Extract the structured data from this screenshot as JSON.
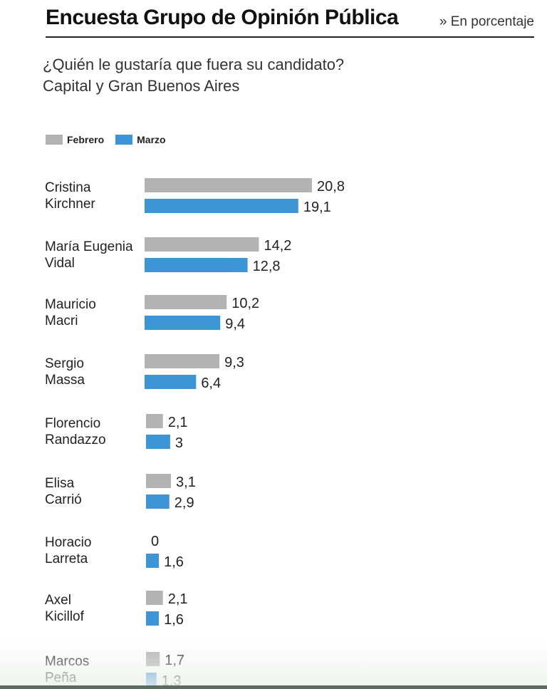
{
  "header": {
    "title": "Encuesta Grupo de Opinión Pública",
    "unit": "» En porcentaje"
  },
  "subtitle": {
    "line1": "¿Quién le gustaría que fuera su candidato?",
    "line2": "Capital y Gran Buenos Aires"
  },
  "colors": {
    "febrero": "#b3b3b3",
    "marzo": "#3e95d6"
  },
  "chart_data": {
    "type": "bar",
    "orientation": "horizontal",
    "legend_position": "top-left",
    "grid": false,
    "categories": [
      [
        "Cristina",
        "Kirchner"
      ],
      [
        "María Eugenia",
        "Vidal"
      ],
      [
        "Mauricio",
        "Macri"
      ],
      [
        "Sergio",
        "Massa"
      ],
      [
        "Florencio",
        "Randazzo"
      ],
      [
        "Elisa",
        "Carrió"
      ],
      [
        "Horacio",
        "Larreta"
      ],
      [
        "Axel",
        "Kicillof"
      ],
      [
        "Marcos",
        "Peña"
      ]
    ],
    "series": [
      {
        "name": "Febrero",
        "values": [
          20.8,
          14.2,
          10.2,
          9.3,
          2.1,
          3.1,
          0,
          2.1,
          1.7
        ],
        "labels": [
          "20,8",
          "14,2",
          "10,2",
          "9,3",
          "2,1",
          "3,1",
          "0",
          "2,1",
          "1,7"
        ]
      },
      {
        "name": "Marzo",
        "values": [
          19.1,
          12.8,
          9.4,
          6.4,
          3,
          2.9,
          1.6,
          1.6,
          1.3
        ],
        "labels": [
          "19,1",
          "12,8",
          "9,4",
          "6,4",
          "3",
          "2,9",
          "1,6",
          "1,6",
          "1,3"
        ]
      }
    ]
  }
}
